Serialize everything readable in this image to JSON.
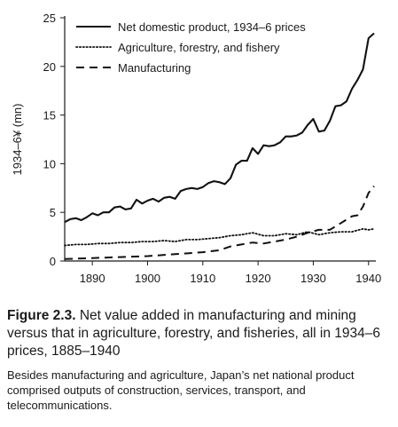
{
  "chart_data": {
    "type": "line",
    "title": "",
    "xlabel": "",
    "ylabel": "1934–6¥ (mn)",
    "xlim": [
      1885,
      1941
    ],
    "ylim": [
      0,
      25
    ],
    "x_ticks": [
      1890,
      1900,
      1910,
      1920,
      1930,
      1940
    ],
    "y_ticks": [
      0,
      5,
      10,
      15,
      20,
      25
    ],
    "grid": false,
    "legend_position": "top-left",
    "series": [
      {
        "name": "Net domestic product, 1934–6 prices",
        "style": "solid",
        "x": [
          1885,
          1886,
          1887,
          1888,
          1889,
          1890,
          1891,
          1892,
          1893,
          1894,
          1895,
          1896,
          1897,
          1898,
          1899,
          1900,
          1901,
          1902,
          1903,
          1904,
          1905,
          1906,
          1907,
          1908,
          1909,
          1910,
          1911,
          1912,
          1913,
          1914,
          1915,
          1916,
          1917,
          1918,
          1919,
          1920,
          1921,
          1922,
          1923,
          1924,
          1925,
          1926,
          1927,
          1928,
          1929,
          1930,
          1931,
          1932,
          1933,
          1934,
          1935,
          1936,
          1937,
          1938,
          1939,
          1940,
          1941
        ],
        "values": [
          4.0,
          4.3,
          4.4,
          4.2,
          4.5,
          4.9,
          4.7,
          5.0,
          5.0,
          5.5,
          5.6,
          5.3,
          5.4,
          6.3,
          5.9,
          6.2,
          6.4,
          6.1,
          6.5,
          6.6,
          6.4,
          7.2,
          7.4,
          7.5,
          7.4,
          7.6,
          8.0,
          8.2,
          8.1,
          7.9,
          8.5,
          9.9,
          10.3,
          10.3,
          11.6,
          11.0,
          11.9,
          11.8,
          11.9,
          12.2,
          12.8,
          12.8,
          12.9,
          13.2,
          14.0,
          14.6,
          13.3,
          13.4,
          14.4,
          15.9,
          16.0,
          16.4,
          17.7,
          18.6,
          19.7,
          22.9,
          23.4
        ]
      },
      {
        "name": "Agriculture, forestry, and fishery",
        "style": "dotted",
        "x": [
          1885,
          1887,
          1889,
          1891,
          1893,
          1895,
          1897,
          1899,
          1901,
          1903,
          1905,
          1907,
          1909,
          1911,
          1913,
          1915,
          1917,
          1919,
          1921,
          1923,
          1925,
          1927,
          1929,
          1931,
          1933,
          1935,
          1937,
          1939,
          1940,
          1941
        ],
        "values": [
          1.6,
          1.7,
          1.7,
          1.8,
          1.8,
          1.9,
          1.9,
          2.0,
          2.0,
          2.1,
          2.0,
          2.2,
          2.2,
          2.3,
          2.4,
          2.6,
          2.7,
          2.9,
          2.6,
          2.6,
          2.8,
          2.7,
          3.0,
          2.7,
          2.9,
          3.0,
          3.0,
          3.3,
          3.2,
          3.3
        ]
      },
      {
        "name": "Manufacturing",
        "style": "dashed",
        "x": [
          1885,
          1890,
          1895,
          1900,
          1905,
          1910,
          1913,
          1915,
          1917,
          1919,
          1921,
          1923,
          1925,
          1927,
          1929,
          1931,
          1933,
          1935,
          1937,
          1938,
          1939,
          1940,
          1941
        ],
        "values": [
          0.2,
          0.3,
          0.4,
          0.5,
          0.7,
          0.9,
          1.1,
          1.5,
          1.7,
          1.9,
          1.8,
          2.0,
          2.2,
          2.5,
          2.9,
          3.2,
          3.2,
          3.9,
          4.6,
          4.7,
          5.6,
          7.0,
          7.7
        ]
      }
    ]
  },
  "caption": {
    "figure_label": "Figure 2.3.",
    "title": "Net value added in manufacturing and mining versus that in agriculture, forestry, and fisheries, all in 1934–6 prices, 1885–1940",
    "note": "Besides manufacturing and agriculture, Japan’s net national product comprised outputs of construction, services, transport, and telecommunications."
  }
}
